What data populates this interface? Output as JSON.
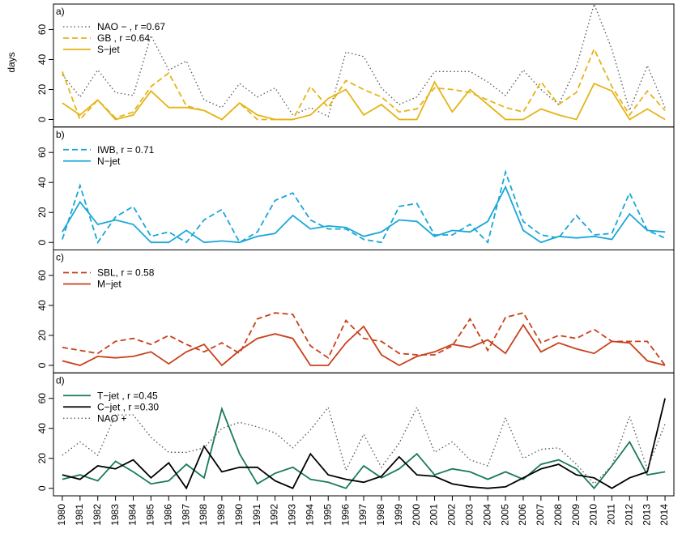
{
  "chart_data": [
    {
      "type": "line",
      "panel_label": "a)",
      "y_label": "days",
      "legend": "top-left",
      "xlim": [
        1979.5,
        2014.5
      ],
      "ylim": [
        -5,
        77
      ],
      "yticks": [
        0,
        20,
        40,
        60
      ],
      "x": [
        1980,
        1981,
        1982,
        1983,
        1984,
        1985,
        1986,
        1987,
        1988,
        1989,
        1990,
        1991,
        1992,
        1993,
        1994,
        1995,
        1996,
        1997,
        1998,
        1999,
        2000,
        2001,
        2002,
        2003,
        2004,
        2005,
        2006,
        2007,
        2008,
        2009,
        2010,
        2011,
        2012,
        2013,
        2014
      ],
      "series": [
        {
          "name": "NAO − , r =0.67",
          "color": "#555555",
          "linestyle": "dotted",
          "values": [
            30,
            15,
            33,
            18,
            16,
            56,
            33,
            39,
            13,
            8,
            24,
            15,
            21,
            3,
            8,
            2,
            45,
            42,
            21,
            10,
            15,
            32,
            32,
            32,
            25,
            16,
            33,
            20,
            10,
            35,
            77,
            47,
            6,
            36,
            8
          ]
        },
        {
          "name": "GB , r =0.64",
          "color": "#e5b418",
          "linestyle": "dashed",
          "values": [
            32,
            0,
            13,
            1,
            5,
            22,
            31,
            9,
            6,
            0,
            11,
            0,
            0,
            0,
            22,
            8,
            26,
            20,
            15,
            5,
            7,
            21,
            20,
            18,
            13,
            8,
            5,
            25,
            10,
            18,
            47,
            22,
            3,
            19,
            6
          ]
        },
        {
          "name": "S−jet",
          "color": "#e5b418",
          "linestyle": "solid",
          "values": [
            11,
            3,
            13,
            0,
            3,
            19,
            8,
            8,
            6,
            0,
            11,
            3,
            0,
            0,
            3,
            14,
            20,
            3,
            10,
            0,
            0,
            25,
            5,
            20,
            10,
            0,
            0,
            7,
            3,
            0,
            24,
            19,
            0,
            7,
            0
          ]
        }
      ]
    },
    {
      "type": "line",
      "panel_label": "b)",
      "legend": "top-left",
      "xlim": [
        1979.5,
        2014.5
      ],
      "ylim": [
        -5,
        77
      ],
      "yticks": [
        0,
        20,
        40,
        60
      ],
      "x": [
        1980,
        1981,
        1982,
        1983,
        1984,
        1985,
        1986,
        1987,
        1988,
        1989,
        1990,
        1991,
        1992,
        1993,
        1994,
        1995,
        1996,
        1997,
        1998,
        1999,
        2000,
        2001,
        2002,
        2003,
        2004,
        2005,
        2006,
        2007,
        2008,
        2009,
        2010,
        2011,
        2012,
        2013,
        2014
      ],
      "series": [
        {
          "name": "IWB, r = 0.71",
          "color": "#1aa7d8",
          "linestyle": "dashed",
          "values": [
            2,
            38,
            0,
            17,
            24,
            4,
            7,
            0,
            15,
            22,
            0,
            7,
            28,
            33,
            15,
            9,
            9,
            2,
            0,
            24,
            26,
            5,
            5,
            12,
            0,
            47,
            14,
            5,
            3,
            18,
            5,
            6,
            33,
            8,
            3
          ]
        },
        {
          "name": "N−jet",
          "color": "#1aa7d8",
          "linestyle": "solid",
          "values": [
            7,
            27,
            12,
            15,
            12,
            0,
            0,
            8,
            0,
            1,
            0,
            4,
            6,
            18,
            9,
            11,
            10,
            4,
            7,
            15,
            14,
            4,
            8,
            7,
            14,
            37,
            8,
            0,
            4,
            3,
            4,
            2,
            19,
            8,
            7
          ]
        }
      ]
    },
    {
      "type": "line",
      "panel_label": "c)",
      "legend": "top-left",
      "xlim": [
        1979.5,
        2014.5
      ],
      "ylim": [
        -5,
        77
      ],
      "yticks": [
        0,
        20,
        40,
        60
      ],
      "x": [
        1980,
        1981,
        1982,
        1983,
        1984,
        1985,
        1986,
        1987,
        1988,
        1989,
        1990,
        1991,
        1992,
        1993,
        1994,
        1995,
        1996,
        1997,
        1998,
        1999,
        2000,
        2001,
        2002,
        2003,
        2004,
        2005,
        2006,
        2007,
        2008,
        2009,
        2010,
        2011,
        2012,
        2013,
        2014
      ],
      "series": [
        {
          "name": "SBL, r = 0.58",
          "color": "#c8401a",
          "linestyle": "dashed",
          "values": [
            12,
            10,
            8,
            16,
            18,
            14,
            20,
            14,
            9,
            15,
            8,
            31,
            35,
            34,
            13,
            5,
            30,
            18,
            16,
            8,
            7,
            7,
            13,
            31,
            10,
            32,
            35,
            15,
            20,
            18,
            24,
            16,
            16,
            16,
            0
          ]
        },
        {
          "name": "M−jet",
          "color": "#c8401a",
          "linestyle": "solid",
          "values": [
            3,
            0,
            6,
            5,
            6,
            9,
            1,
            9,
            14,
            0,
            10,
            18,
            21,
            18,
            0,
            0,
            15,
            26,
            7,
            0,
            6,
            9,
            14,
            12,
            17,
            8,
            27,
            9,
            15,
            11,
            8,
            16,
            15,
            3,
            0
          ]
        }
      ]
    },
    {
      "type": "line",
      "panel_label": "d)",
      "legend": "top-left",
      "xlim": [
        1979.5,
        2014.5
      ],
      "ylim": [
        -5,
        77
      ],
      "yticks": [
        0,
        20,
        40,
        60
      ],
      "x": [
        1980,
        1981,
        1982,
        1983,
        1984,
        1985,
        1986,
        1987,
        1988,
        1989,
        1990,
        1991,
        1992,
        1993,
        1994,
        1995,
        1996,
        1997,
        1998,
        1999,
        2000,
        2001,
        2002,
        2003,
        2004,
        2005,
        2006,
        2007,
        2008,
        2009,
        2010,
        2011,
        2012,
        2013,
        2014
      ],
      "xticks": [
        1980,
        1981,
        1982,
        1983,
        1984,
        1985,
        1986,
        1987,
        1988,
        1989,
        1990,
        1991,
        1992,
        1993,
        1994,
        1995,
        1996,
        1997,
        1998,
        1999,
        2000,
        2001,
        2002,
        2003,
        2004,
        2005,
        2006,
        2007,
        2008,
        2009,
        2010,
        2011,
        2012,
        2013,
        2014
      ],
      "series": [
        {
          "name": "T−jet , r =0.45",
          "color": "#1a7a5e",
          "linestyle": "solid",
          "values": [
            6,
            9,
            5,
            18,
            11,
            3,
            5,
            16,
            7,
            53,
            23,
            3,
            10,
            14,
            6,
            4,
            0,
            15,
            7,
            13,
            23,
            9,
            13,
            11,
            6,
            11,
            6,
            16,
            19,
            13,
            0,
            15,
            31,
            9,
            11
          ]
        },
        {
          "name": "C−jet , r =0.30",
          "color": "#000000",
          "linestyle": "solid",
          "values": [
            9,
            6,
            15,
            13,
            19,
            7,
            17,
            0,
            28,
            11,
            14,
            14,
            5,
            0,
            23,
            9,
            6,
            4,
            8,
            21,
            9,
            8,
            3,
            1,
            0,
            1,
            7,
            13,
            16,
            9,
            7,
            0,
            7,
            11,
            60
          ]
        },
        {
          "name": "NAO +",
          "color": "#555555",
          "linestyle": "dotted",
          "values": [
            22,
            31,
            22,
            49,
            49,
            34,
            24,
            24,
            27,
            40,
            44,
            41,
            37,
            27,
            39,
            54,
            12,
            36,
            14,
            30,
            54,
            24,
            31,
            19,
            15,
            47,
            20,
            26,
            27,
            16,
            3,
            15,
            48,
            13,
            43
          ]
        }
      ]
    }
  ]
}
